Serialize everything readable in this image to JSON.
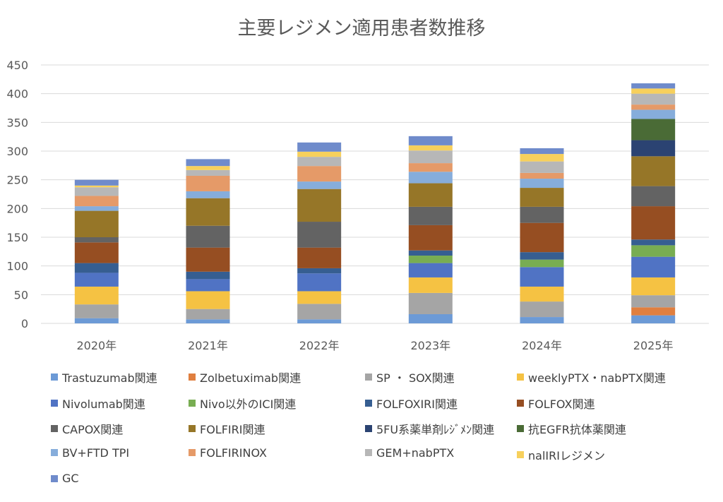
{
  "chart_data": {
    "type": "bar",
    "stacked": true,
    "title": "主要レジメン適用患者数推移",
    "xlabel": "",
    "ylabel": "",
    "ylim": [
      0,
      450
    ],
    "yticks": [
      0,
      50,
      100,
      150,
      200,
      250,
      300,
      350,
      400,
      450
    ],
    "grid": true,
    "legend_position": "bottom",
    "categories": [
      "2020年",
      "2021年",
      "2022年",
      "2023年",
      "2024年",
      "2025年"
    ],
    "series": [
      {
        "name": "Trastuzumab関連",
        "color": "#6C9AD6",
        "values": [
          9,
          7,
          7,
          16,
          11,
          14
        ]
      },
      {
        "name": "Zolbetuximab関連",
        "color": "#E07F3F",
        "values": [
          0,
          0,
          0,
          0,
          0,
          14
        ]
      },
      {
        "name": "SP ・ SOX関連",
        "color": "#A5A5A5",
        "values": [
          24,
          18,
          27,
          37,
          27,
          21
        ]
      },
      {
        "name": "weeklyPTX・nabPTX関連",
        "color": "#F5C243",
        "values": [
          31,
          31,
          22,
          27,
          26,
          31
        ]
      },
      {
        "name": "Nivolumab関連",
        "color": "#5073C4",
        "values": [
          24,
          21,
          31,
          25,
          34,
          36
        ]
      },
      {
        "name": "Nivo以外のICI関連",
        "color": "#78AD52",
        "values": [
          0,
          0,
          0,
          13,
          13,
          20
        ]
      },
      {
        "name": "FOLFOXIRI関連",
        "color": "#365E91",
        "values": [
          17,
          13,
          9,
          9,
          13,
          10
        ]
      },
      {
        "name": "FOLFOX関連",
        "color": "#964E22",
        "values": [
          36,
          42,
          36,
          44,
          51,
          58
        ]
      },
      {
        "name": "CAPOX関連",
        "color": "#636363",
        "values": [
          9,
          38,
          45,
          32,
          28,
          35
        ]
      },
      {
        "name": "FOLFIRI関連",
        "color": "#967628",
        "values": [
          46,
          48,
          57,
          41,
          33,
          52
        ]
      },
      {
        "name": "5FU系薬単剤ﾚｼﾞﾒﾝ関連",
        "color": "#2B4372",
        "values": [
          0,
          0,
          0,
          0,
          0,
          28
        ]
      },
      {
        "name": "抗EGFR抗体薬関連",
        "color": "#4A6B36",
        "values": [
          0,
          0,
          0,
          0,
          0,
          37
        ]
      },
      {
        "name": "BV+FTD TPI",
        "color": "#86ADDB",
        "values": [
          8,
          12,
          13,
          20,
          16,
          16
        ]
      },
      {
        "name": "FOLFIRINOX",
        "color": "#E59A68",
        "values": [
          18,
          27,
          27,
          15,
          10,
          9
        ]
      },
      {
        "name": "GEM+nabPTX",
        "color": "#B7B7B7",
        "values": [
          15,
          10,
          16,
          22,
          20,
          19
        ]
      },
      {
        "name": "nalIRIレジメン",
        "color": "#F7D05C",
        "values": [
          3,
          7,
          9,
          9,
          13,
          9
        ]
      },
      {
        "name": "GC",
        "color": "#6F8BCB",
        "values": [
          10,
          12,
          16,
          16,
          10,
          9
        ]
      }
    ]
  }
}
